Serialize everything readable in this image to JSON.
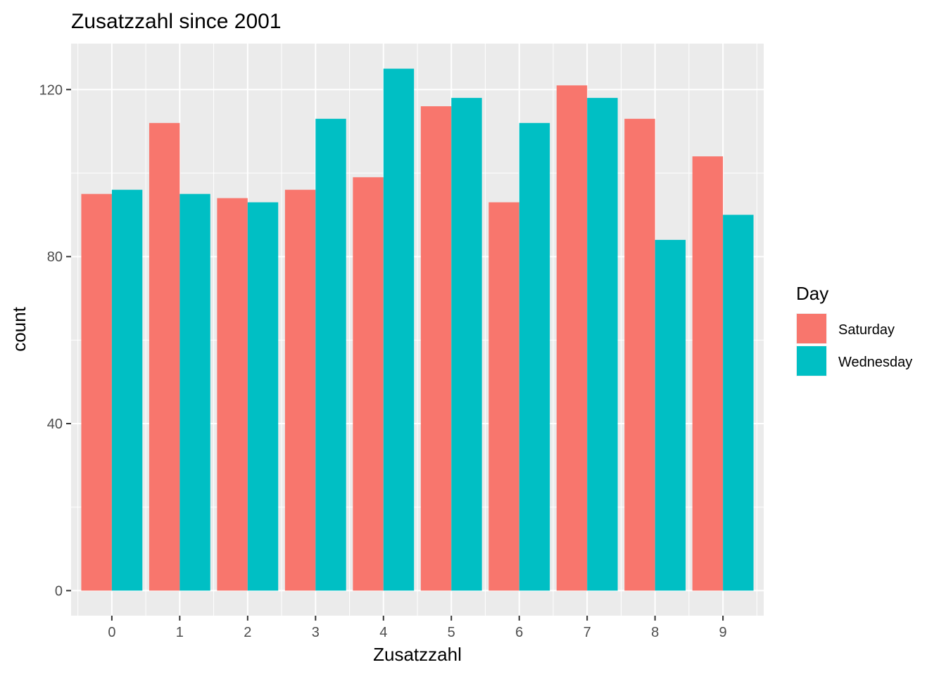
{
  "chart_data": {
    "type": "bar",
    "title": "Zusatzzahl since 2001",
    "xlabel": "Zusatzzahl",
    "ylabel": "count",
    "categories": [
      "0",
      "1",
      "2",
      "3",
      "4",
      "5",
      "6",
      "7",
      "8",
      "9"
    ],
    "series": [
      {
        "name": "Saturday",
        "color": "#F8766D",
        "values": [
          95,
          112,
          94,
          96,
          99,
          116,
          93,
          121,
          113,
          104
        ]
      },
      {
        "name": "Wednesday",
        "color": "#00BFC4",
        "values": [
          96,
          95,
          93,
          113,
          125,
          118,
          112,
          118,
          84,
          90
        ]
      }
    ],
    "ylim": [
      -6,
      131
    ],
    "yticks": [
      0,
      40,
      80,
      120
    ],
    "legend": {
      "title": "Day",
      "position": "right"
    },
    "grid": true,
    "panel_background": "#EBEBEB"
  }
}
